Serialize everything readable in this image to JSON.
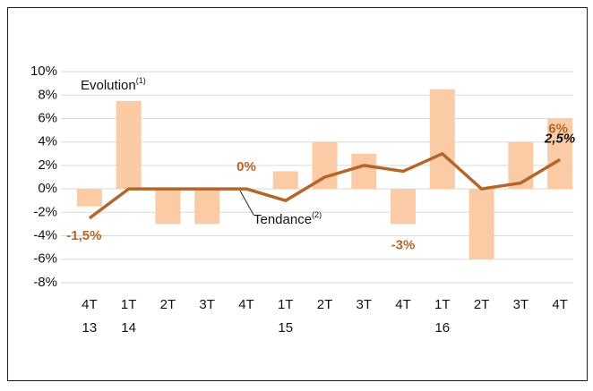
{
  "chart_data": {
    "type": "bar_line",
    "categories": [
      "4T",
      "1T",
      "2T",
      "3T",
      "4T",
      "1T",
      "2T",
      "3T",
      "4T",
      "1T",
      "2T",
      "3T",
      "4T"
    ],
    "years": [
      "13",
      "14",
      null,
      null,
      null,
      "15",
      null,
      null,
      null,
      "16",
      null,
      null,
      null
    ],
    "series": [
      {
        "name": "Evolution",
        "note": "(1)",
        "type": "bar",
        "color": "#fbcba5",
        "values": [
          -1.5,
          7.5,
          -3,
          -3,
          0,
          1.5,
          4,
          3,
          -3,
          8.5,
          -6,
          4,
          6
        ],
        "value_labels": [
          "-1,5%",
          null,
          null,
          null,
          "0%",
          null,
          null,
          null,
          "-3%",
          null,
          null,
          null,
          "6%"
        ],
        "label_color": "#b5652a"
      },
      {
        "name": "Tendance",
        "note": "(2)",
        "type": "line",
        "color": "#b5652a",
        "values": [
          -2.5,
          0,
          0,
          0,
          0,
          -1,
          1,
          2,
          1.5,
          3,
          0,
          0.5,
          2.5
        ],
        "value_labels": [
          null,
          null,
          null,
          null,
          null,
          null,
          null,
          null,
          null,
          null,
          null,
          null,
          "2,5%"
        ],
        "label_color": "#111"
      }
    ],
    "ylim": [
      -9,
      11
    ],
    "yticks": [
      {
        "value": -8,
        "label": "-8%"
      },
      {
        "value": -6,
        "label": "-6%"
      },
      {
        "value": -4,
        "label": "-4%"
      },
      {
        "value": -2,
        "label": "-2%"
      },
      {
        "value": 0,
        "label": "0%"
      },
      {
        "value": 2,
        "label": "2%"
      },
      {
        "value": 4,
        "label": "4%"
      },
      {
        "value": 6,
        "label": "6%"
      },
      {
        "value": 8,
        "label": "8%"
      },
      {
        "value": 10,
        "label": "10%"
      }
    ],
    "grid": true
  }
}
